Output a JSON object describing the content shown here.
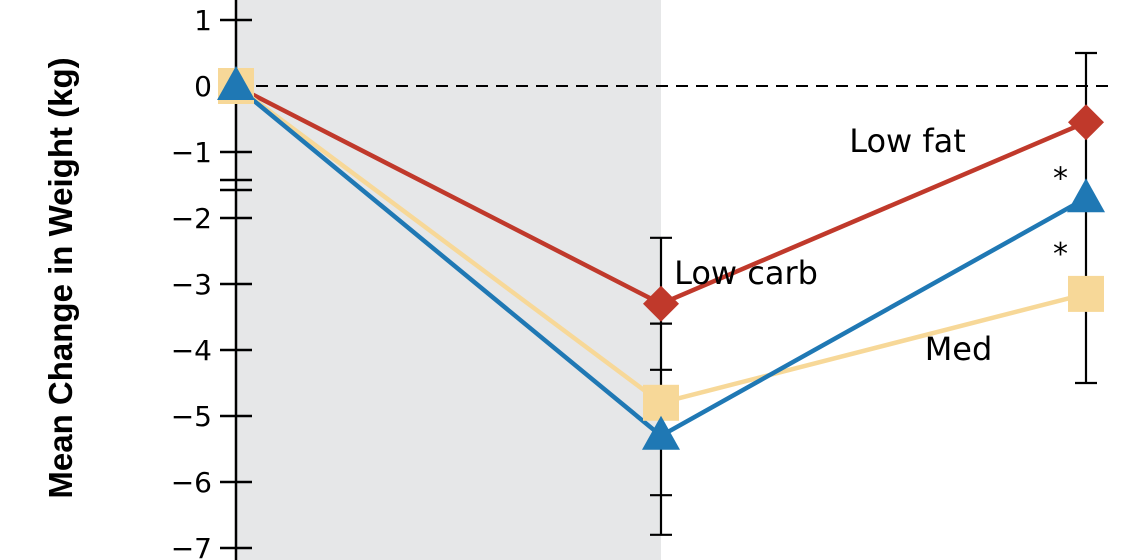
{
  "chart_data": {
    "type": "line",
    "ylabel": "Mean Change in Weight (kg)",
    "ylim": [
      -7,
      1
    ],
    "y_ticks": [
      1,
      0,
      -1,
      -2,
      -3,
      -4,
      -5,
      -6,
      -7
    ],
    "y_tick_labels": [
      "1",
      "0",
      "−1",
      "−2",
      "−3",
      "−4",
      "−5",
      "−6",
      "−7"
    ],
    "grid": false,
    "reference_line": {
      "y": 0,
      "style": "dashed"
    },
    "shaded_phase": {
      "x_start": 0,
      "x_end": 0.5
    },
    "x": [
      0,
      0.5,
      1
    ],
    "series": [
      {
        "name": "Low fat",
        "marker": "diamond",
        "color": "#c0392b",
        "values": [
          0,
          -3.3,
          -0.55
        ],
        "label_at": [
          0.79,
          -1.0
        ]
      },
      {
        "name": "Med",
        "marker": "square",
        "color": "#f7d898",
        "values": [
          0,
          -4.8,
          -3.15
        ],
        "label_at": [
          0.85,
          -4.15
        ]
      },
      {
        "name": "Low carb",
        "marker": "triangle",
        "color": "#1f78b4",
        "values": [
          0,
          -5.3,
          -1.7
        ],
        "label_at": [
          0.6,
          -3.0
        ]
      }
    ],
    "error_bars": [
      {
        "x": 0.5,
        "ticks": [
          -2.3,
          -3.6,
          -4.3,
          -6.2,
          -6.8
        ]
      },
      {
        "x": 1,
        "ticks": [
          0.5,
          -4.5
        ]
      }
    ],
    "annotations": [
      {
        "text": "*",
        "x": 0.97,
        "y": -1.55
      },
      {
        "text": "*",
        "x": 0.97,
        "y": -2.7
      }
    ]
  }
}
